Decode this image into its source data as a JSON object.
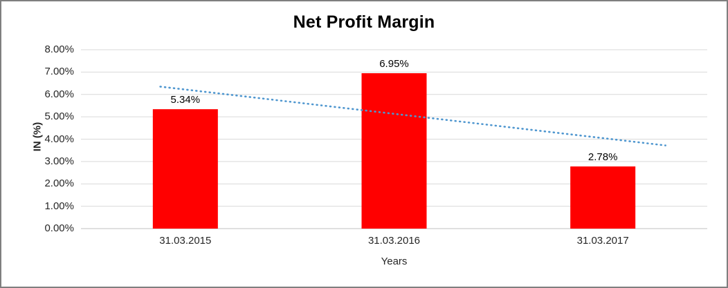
{
  "chart_data": {
    "type": "bar",
    "title": "Net Profit Margin",
    "xlabel": "Years",
    "ylabel": "IN (%)",
    "categories": [
      "31.03.2015",
      "31.03.2016",
      "31.03.2017"
    ],
    "values": [
      5.34,
      6.95,
      2.78
    ],
    "data_labels": [
      "5.34%",
      "6.95%",
      "2.78%"
    ],
    "ylim": [
      0,
      8
    ],
    "ytick_step": 1,
    "ytick_labels": [
      "0.00%",
      "1.00%",
      "2.00%",
      "3.00%",
      "4.00%",
      "5.00%",
      "6.00%",
      "7.00%",
      "8.00%"
    ],
    "grid": true,
    "legend": "none",
    "bar_color": "#FF0000",
    "grid_color": "#D9D9D9",
    "axis_color": "#BFBFBF",
    "text_color": "#262626",
    "trendline": {
      "type": "linear",
      "style": "dotted",
      "color": "#4E96CF",
      "points": [
        {
          "cat_frac": -0.12,
          "value": 6.35
        },
        {
          "cat_frac": 2.3,
          "value": 3.72
        }
      ]
    }
  }
}
